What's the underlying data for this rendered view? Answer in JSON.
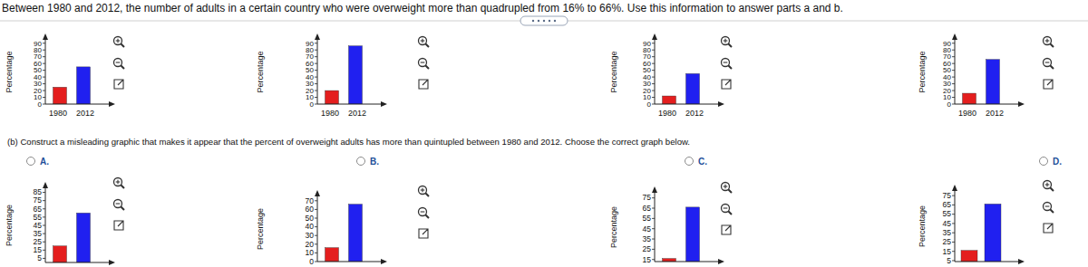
{
  "question": "Between 1980 and 2012, the number of adults in a certain country who were overweight more than quadrupled from 16% to 66%. Use this information to answer parts a and b.",
  "part_b": "(b) Construct a misleading graphic that makes it appear that the percent of overweight adults has more than quintupled between 1980 and 2012. Choose the correct graph below.",
  "options": [
    "A.",
    "B.",
    "C.",
    "D."
  ],
  "chart_data": [
    {
      "type": "bar",
      "y_label": "Percentage",
      "categories": [
        "1980",
        "2012"
      ],
      "values": [
        25,
        55
      ],
      "colors": [
        "#e41e1e",
        "#2020f0"
      ],
      "ylim": [
        0,
        95
      ],
      "yticks": [
        0,
        10,
        20,
        30,
        40,
        50,
        60,
        70,
        80,
        90
      ]
    },
    {
      "type": "bar",
      "y_label": "Percentage",
      "categories": [
        "1980",
        "2012"
      ],
      "values": [
        20,
        86
      ],
      "colors": [
        "#e41e1e",
        "#2020f0"
      ],
      "ylim": [
        0,
        95
      ],
      "yticks": [
        0,
        10,
        20,
        30,
        40,
        50,
        60,
        70,
        80,
        90
      ]
    },
    {
      "type": "bar",
      "y_label": "Percentage",
      "categories": [
        "1980",
        "2012"
      ],
      "values": [
        12,
        45
      ],
      "colors": [
        "#e41e1e",
        "#2020f0"
      ],
      "ylim": [
        0,
        95
      ],
      "yticks": [
        0,
        10,
        20,
        30,
        40,
        50,
        60,
        70,
        80,
        90
      ]
    },
    {
      "type": "bar",
      "y_label": "Percentage",
      "categories": [
        "1980",
        "2012"
      ],
      "values": [
        16,
        66
      ],
      "colors": [
        "#e41e1e",
        "#2020f0"
      ],
      "ylim": [
        0,
        95
      ],
      "yticks": [
        0,
        10,
        20,
        30,
        40,
        50,
        60,
        70,
        80,
        90
      ]
    },
    {
      "type": "bar",
      "y_label": "Percentage",
      "categories": [
        null,
        null
      ],
      "values": [
        20,
        60
      ],
      "colors": [
        "#e41e1e",
        "#2020f0"
      ],
      "ylim": [
        0,
        90
      ],
      "yticks": [
        5,
        15,
        25,
        35,
        45,
        55,
        65,
        75,
        85
      ]
    },
    {
      "type": "bar",
      "y_label": "Percentage",
      "categories": [
        null,
        null
      ],
      "values": [
        16,
        66
      ],
      "colors": [
        "#e41e1e",
        "#2020f0"
      ],
      "ylim": [
        0,
        75
      ],
      "yticks": [
        0,
        10,
        20,
        30,
        40,
        50,
        60,
        70
      ]
    },
    {
      "type": "bar",
      "y_label": "Percentage",
      "categories": [
        null,
        null
      ],
      "values": [
        16,
        66
      ],
      "colors": [
        "#e41e1e",
        "#2020f0"
      ],
      "ylim": [
        13,
        80
      ],
      "yticks": [
        15,
        25,
        35,
        45,
        55,
        65,
        75
      ]
    },
    {
      "type": "bar",
      "y_label": "Percentage",
      "categories": [
        null,
        null
      ],
      "values": [
        16,
        66
      ],
      "colors": [
        "#e41e1e",
        "#2020f0"
      ],
      "ylim": [
        4,
        80
      ],
      "yticks": [
        5,
        15,
        25,
        35,
        45,
        55,
        65,
        75
      ]
    }
  ]
}
